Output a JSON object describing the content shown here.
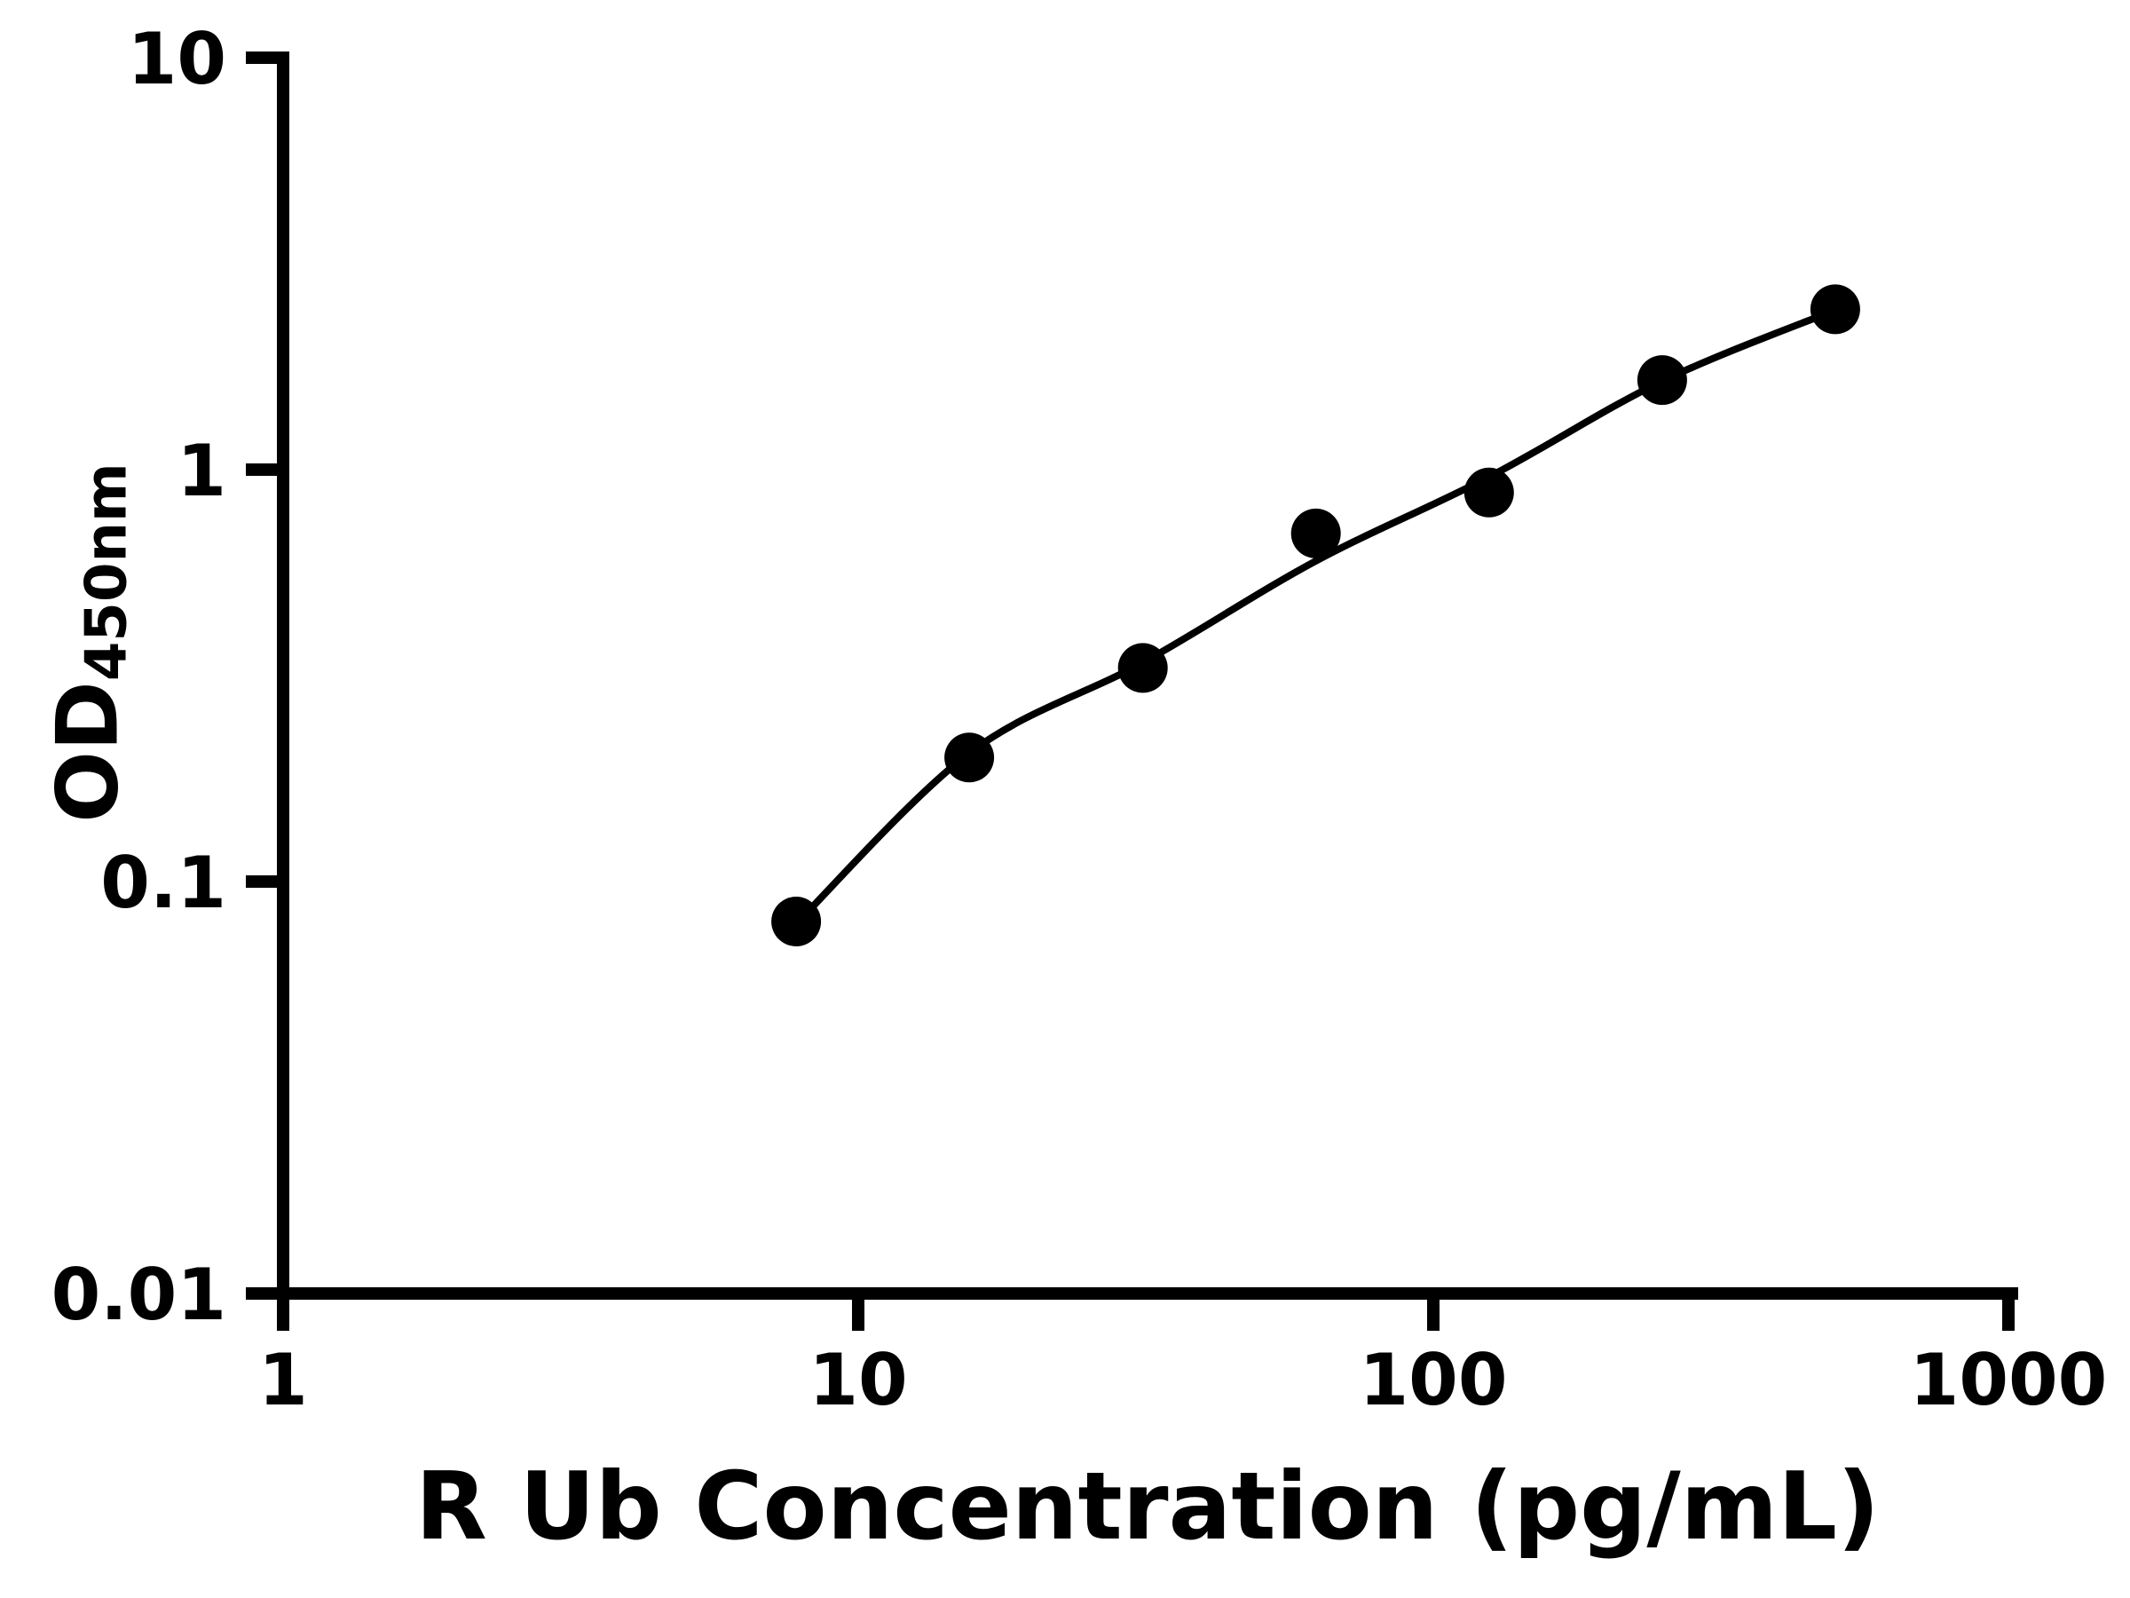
{
  "page": {
    "background": "#ffffff",
    "foreground": "#000000"
  },
  "chart_data": {
    "type": "scatter",
    "title": "",
    "xlabel": "R Ub Concentration (pg/mL)",
    "ylabel_main": "OD",
    "ylabel_sub": "450nm",
    "grid": false,
    "legend": false,
    "x_axis": {
      "scale": "log",
      "min": 1,
      "max": 1000,
      "ticks": [
        1,
        10,
        100,
        1000
      ],
      "tick_labels": [
        "1",
        "10",
        "100",
        "1000"
      ]
    },
    "y_axis": {
      "scale": "log",
      "min": 0.01,
      "max": 10,
      "ticks": [
        10,
        1,
        0.1,
        0.01
      ],
      "tick_labels": [
        "10",
        "1",
        "0.1",
        "0.01"
      ]
    },
    "series": [
      {
        "name": "standard-points",
        "marker": "filled-circle",
        "color": "#000000",
        "x": [
          7.8,
          15.6,
          31.25,
          62.5,
          125,
          250,
          500
        ],
        "y": [
          0.08,
          0.2,
          0.33,
          0.7,
          0.88,
          1.65,
          2.45
        ]
      }
    ],
    "fit_curve": {
      "name": "fitted-standard-curve",
      "color": "#000000",
      "x": [
        7.8,
        15.6,
        31.25,
        62.5,
        125,
        250,
        500
      ],
      "y": [
        0.079,
        0.205,
        0.34,
        0.6,
        0.96,
        1.64,
        2.44
      ]
    }
  }
}
